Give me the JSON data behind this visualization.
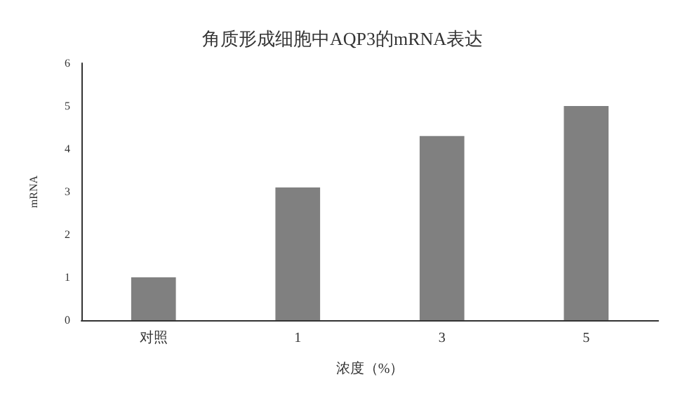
{
  "chart_data": {
    "type": "bar",
    "title": "角质形成细胞中AQP3的mRNA表达",
    "xlabel": "浓度（%）",
    "ylabel": "mRNA",
    "categories": [
      "对照",
      "1",
      "3",
      "5"
    ],
    "values": [
      1.0,
      3.1,
      4.3,
      5.0
    ],
    "color": "#808080",
    "ylim": [
      0,
      6
    ],
    "yticks": [
      0,
      1,
      2,
      3,
      4,
      5,
      6
    ],
    "grid": false
  }
}
